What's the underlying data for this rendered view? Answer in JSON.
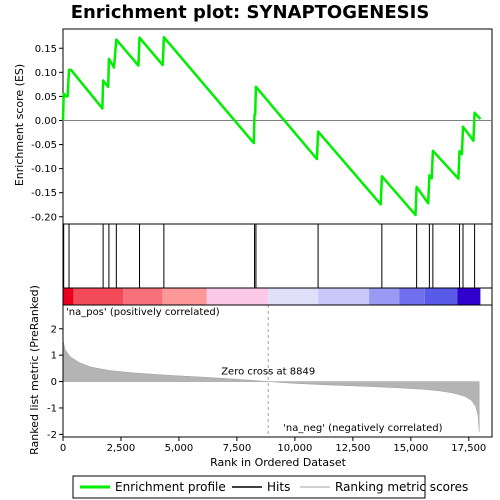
{
  "chart_data": {
    "type": "line",
    "title": "Enrichment plot: SYNAPTOGENESIS",
    "x_axis": {
      "label": "Rank in Ordered Dataset",
      "lim": [
        0,
        18500
      ],
      "ticks": [
        0,
        2500,
        5000,
        7500,
        10000,
        12500,
        15000,
        17500
      ],
      "tick_labels": [
        "0",
        "2,500",
        "5,000",
        "7,500",
        "10,000",
        "12,500",
        "15,000",
        "17,500"
      ]
    },
    "es_panel": {
      "ylabel": "Enrichment score (ES)",
      "ylim": [
        -0.215,
        0.19
      ],
      "ticks": [
        -0.2,
        -0.15,
        -0.1,
        -0.05,
        0.0,
        0.05,
        0.1,
        0.15
      ],
      "tick_labels": [
        "-0.20",
        "-0.15",
        "-0.10",
        "-0.05",
        "0.00",
        "0.05",
        "0.10",
        "0.15"
      ],
      "zero_line": true
    },
    "rank_panel": {
      "ylabel": "Ranked list metric (PreRanked)",
      "ylim": [
        -2.1,
        2.9
      ],
      "ticks": [
        -2,
        -1,
        0,
        1,
        2
      ],
      "tick_labels": [
        "-2",
        "-1",
        "0",
        "1",
        "2"
      ],
      "zero_cross_label": "Zero cross at 8849",
      "zero_cross": 8849,
      "pos_label": "'na_pos' (positively correlated)",
      "neg_label": "'na_neg' (negatively correlated)",
      "metric_curve": [
        [
          0,
          1.55
        ],
        [
          100,
          1.2
        ],
        [
          300,
          0.95
        ],
        [
          700,
          0.72
        ],
        [
          1200,
          0.55
        ],
        [
          2000,
          0.42
        ],
        [
          3000,
          0.33
        ],
        [
          4500,
          0.24
        ],
        [
          6000,
          0.17
        ],
        [
          7500,
          0.09
        ],
        [
          8849,
          0.0
        ],
        [
          10000,
          -0.07
        ],
        [
          11500,
          -0.13
        ],
        [
          13000,
          -0.18
        ],
        [
          14500,
          -0.24
        ],
        [
          15500,
          -0.29
        ],
        [
          16200,
          -0.35
        ],
        [
          16800,
          -0.43
        ],
        [
          17300,
          -0.55
        ],
        [
          17600,
          -0.7
        ],
        [
          17800,
          -0.95
        ],
        [
          17900,
          -1.3
        ],
        [
          17950,
          -1.9
        ]
      ]
    },
    "series": [
      {
        "name": "Enrichment profile",
        "color": "#00ee00",
        "x": [
          0,
          30,
          60,
          120,
          200,
          260,
          350,
          1700,
          1730,
          1950,
          1980,
          2200,
          2300,
          3250,
          3300,
          4300,
          4350,
          8230,
          8260,
          8290,
          8320,
          10950,
          11000,
          13700,
          13750,
          15200,
          15250,
          15750,
          15800,
          15900,
          15950,
          17050,
          17100,
          17200,
          17250,
          17700,
          17750,
          18000
        ],
        "y": [
          0.0,
          0.055,
          0.055,
          0.05,
          0.05,
          0.105,
          0.105,
          0.025,
          0.083,
          0.07,
          0.128,
          0.11,
          0.168,
          0.114,
          0.172,
          0.115,
          0.173,
          -0.047,
          0.012,
          0.012,
          0.07,
          -0.08,
          -0.023,
          -0.174,
          -0.116,
          -0.196,
          -0.138,
          -0.172,
          -0.114,
          -0.12,
          -0.063,
          -0.121,
          -0.064,
          -0.07,
          -0.013,
          -0.042,
          0.016,
          0.003
        ]
      }
    ],
    "hits": [
      30,
      260,
      1730,
      1980,
      2300,
      3300,
      4350,
      8260,
      8320,
      11000,
      13750,
      15250,
      15800,
      15950,
      17100,
      17250,
      17750
    ],
    "color_bar": [
      {
        "from": 0,
        "to": 450,
        "color": "#e8001e"
      },
      {
        "from": 450,
        "to": 2600,
        "color": "#f24a58"
      },
      {
        "from": 2600,
        "to": 4300,
        "color": "#f8707a"
      },
      {
        "from": 4300,
        "to": 6200,
        "color": "#fc9898"
      },
      {
        "from": 6200,
        "to": 8849,
        "color": "#fcc8e8"
      },
      {
        "from": 8849,
        "to": 11000,
        "color": "#e0e0fa"
      },
      {
        "from": 11000,
        "to": 13200,
        "color": "#c8c8fa"
      },
      {
        "from": 13200,
        "to": 14500,
        "color": "#9a9af4"
      },
      {
        "from": 14500,
        "to": 15600,
        "color": "#7070ee"
      },
      {
        "from": 15600,
        "to": 17000,
        "color": "#5a5ae8"
      },
      {
        "from": 17000,
        "to": 18000,
        "color": "#3000cc"
      }
    ],
    "legend": {
      "placement": "bottom",
      "items": [
        {
          "label": "Enrichment profile",
          "color": "#00ee00"
        },
        {
          "label": "Hits",
          "color": "#000000"
        },
        {
          "label": "Ranking metric scores",
          "color": "#c0c0c0"
        }
      ]
    }
  }
}
